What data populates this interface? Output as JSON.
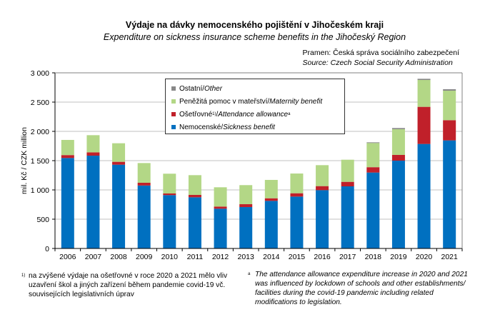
{
  "chart_data": {
    "type": "bar",
    "stacked": true,
    "title": "Výdaje na dávky nemocenského pojištění v Jihočeském kraji",
    "subtitle": "Expenditure on sickness insurance scheme benefits in the Jihočeský Region",
    "ylabel": "mil. Kč / CZK million",
    "xlabel": "",
    "ylim": [
      0,
      3000
    ],
    "yticks": [
      0,
      500,
      1000,
      1500,
      2000,
      2500,
      3000
    ],
    "ytick_labels": [
      "0",
      "500",
      "1 000",
      "1 500",
      "2 000",
      "2 500",
      "3 000"
    ],
    "grid": true,
    "legend_position": "top-center",
    "categories": [
      "2006",
      "2007",
      "2008",
      "2009",
      "2010",
      "2011",
      "2012",
      "2013",
      "2014",
      "2015",
      "2016",
      "2017",
      "2018",
      "2019",
      "2020",
      "2021"
    ],
    "series": [
      {
        "name": "Nemocenské / Sickness benefit",
        "name_cz": "Nemocenské",
        "name_en": "Sickness benefit",
        "color": "#0070c0",
        "values": [
          1545,
          1585,
          1431,
          1075,
          911,
          874,
          679,
          707,
          813,
          886,
          996,
          1061,
          1297,
          1500,
          1785,
          1846
        ]
      },
      {
        "name": "Ošetřovné / Attendance allowance",
        "name_cz": "Ošetřovné",
        "name_en": "Attendance allowance",
        "color": "#c0202a",
        "values": [
          50,
          57,
          49,
          47,
          28,
          41,
          37,
          49,
          44,
          57,
          69,
          77,
          91,
          98,
          634,
          345
        ]
      },
      {
        "name": "Peněžitá pomoc v mateřství / Maternity benefit",
        "name_cz": "Peněžitá pomoc v mateřství",
        "name_en": "Maternity benefit",
        "color": "#b3d786",
        "values": [
          259,
          293,
          317,
          337,
          338,
          337,
          329,
          326,
          314,
          337,
          358,
          378,
          413,
          439,
          459,
          504
        ]
      },
      {
        "name": "Ostatní / Other",
        "name_cz": "Ostatní",
        "name_en": "Other",
        "color": "#888888",
        "values": [
          0,
          0,
          0,
          0,
          0,
          0,
          0,
          0,
          0,
          0,
          0,
          0,
          12,
          20,
          20,
          25
        ]
      }
    ]
  },
  "header": {
    "title": "Výdaje na dávky nemocenského pojištění v Jihočeském kraji",
    "subtitle": "Expenditure on sickness insurance scheme benefits in the Jihočeský Region",
    "source_cz": "Pramen: Česká správa sociálního zabezpečení",
    "source_en": "Source: Czech Social Security Administration"
  },
  "legend": {
    "items": [
      {
        "cz": "Ostatní",
        "sep": " / ",
        "en": "Other",
        "sup_cz": "",
        "sup_en": ""
      },
      {
        "cz": "Peněžitá pomoc v mateřství",
        "sep": " / ",
        "en": "Maternity benefit",
        "sup_cz": "",
        "sup_en": ""
      },
      {
        "cz": "Ošetřovné",
        "sep": " / ",
        "en": "Attendance allowance",
        "sup_cz": "1)",
        "sup_en": "a"
      },
      {
        "cz": "Nemocenské",
        "sep": " / ",
        "en": "Sickness benefit",
        "sup_cz": "",
        "sup_en": ""
      }
    ]
  },
  "notes": {
    "left_mark": "1)",
    "left": "na zvýšené výdaje na ošetřovné v roce 2020 a 2021 mělo vliv uzavření škol a jiných zařízení během pandemie covid-19 vč. souvisejících legislativních úprav",
    "right_mark": "a",
    "right": "The attendance allowance expenditure increase in 2020 and 2021 was influenced by lockdown of schools and other establishments/ facilities during the covid-19 pandemic including related modifications to legislation."
  }
}
